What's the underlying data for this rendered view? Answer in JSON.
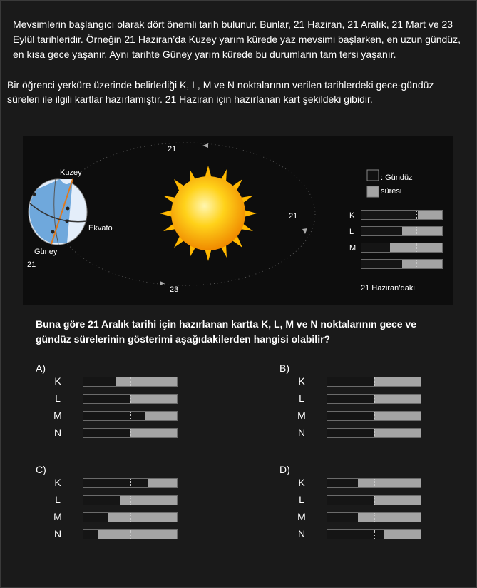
{
  "intro": "Mevsimlerin başlangıcı olarak dört önemli tarih bulunur. Bunlar, 21 Haziran, 21 Aralık, 21 Mart ve 23 Eylül tarihleridir. Örneğin 21 Haziran’da Kuzey yarım kürede yaz mevsimi başlarken, en uzun gündüz, en kısa gece yaşanır. Aynı tarihte Güney yarım kürede bu durumların tam tersi yaşanır.",
  "task": "Bir öğrenci yerküre üzerinde belirlediği K, L, M ve N noktalarının verilen tarihlerdeki gece-gündüz süreleri ile ilgili                 kartlar hazırlamıştır. 21 Haziran için hazırlanan kart şekildeki gibidir.",
  "diagram": {
    "top_label": "21",
    "right_label": "21",
    "bottom_label": "23",
    "left_label": "21",
    "north_label": "Kuzey",
    "south_label": "Güney",
    "equator_label": "Ekvato",
    "legend_line1": ": Gündüz",
    "legend_line2": "süresi",
    "card_caption": "21 Haziran’daki",
    "card_rows": [
      {
        "label": "K",
        "day": 0.3
      },
      {
        "label": "L",
        "day": 0.5
      },
      {
        "label": "M",
        "day": 0.65
      },
      {
        "label": "N",
        "day": 0.5
      }
    ]
  },
  "question": "Buna göre 21 Aralık tarihi için hazırlanan kartta K, L, M ve N noktalarının gece ve gündüz sürelerinin gösterimi aşağıdakilerden hangisi olabilir?",
  "options": [
    {
      "letter": "A)",
      "rows": [
        {
          "label": "K",
          "day": 0.65
        },
        {
          "label": "L",
          "day": 0.5
        },
        {
          "label": "M",
          "day": 0.34
        },
        {
          "label": "N",
          "day": 0.5
        }
      ]
    },
    {
      "letter": "B)",
      "rows": [
        {
          "label": "K",
          "day": 0.5
        },
        {
          "label": "L",
          "day": 0.5
        },
        {
          "label": "M",
          "day": 0.5
        },
        {
          "label": "N",
          "day": 0.5
        }
      ]
    },
    {
      "letter": "C)",
      "rows": [
        {
          "label": "K",
          "day": 0.31
        },
        {
          "label": "L",
          "day": 0.6
        },
        {
          "label": "M",
          "day": 0.73
        },
        {
          "label": "N",
          "day": 0.84
        }
      ]
    },
    {
      "letter": "D)",
      "rows": [
        {
          "label": "K",
          "day": 0.67
        },
        {
          "label": "L",
          "day": 0.5
        },
        {
          "label": "M",
          "day": 0.67
        },
        {
          "label": "N",
          "day": 0.4
        }
      ]
    }
  ]
}
